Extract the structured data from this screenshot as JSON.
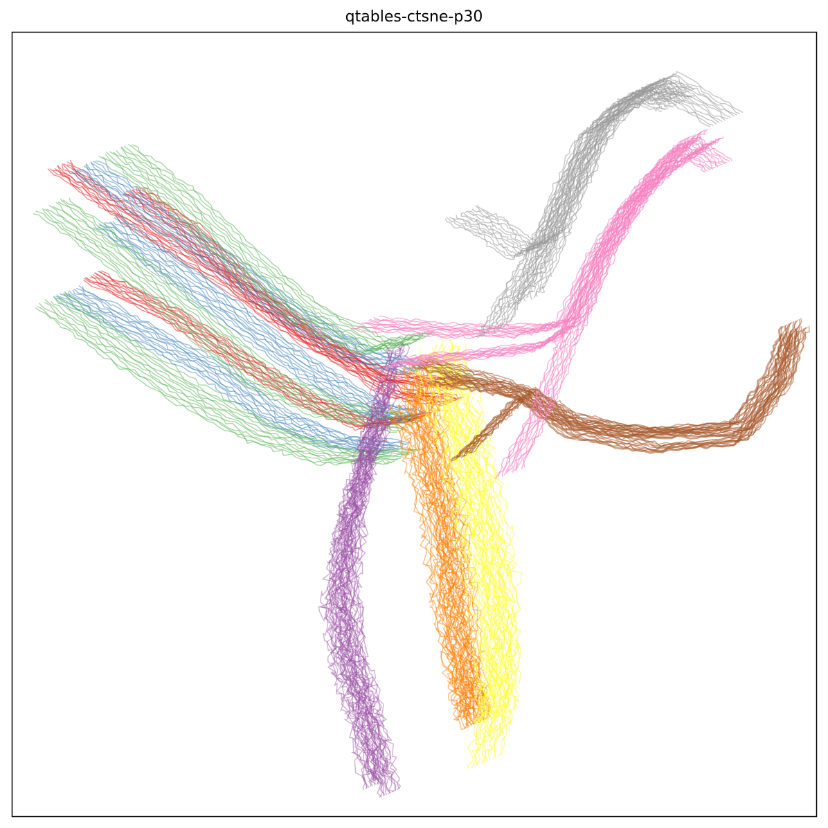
{
  "chart_data": {
    "type": "line",
    "title": "qtables-ctsne-p30",
    "xlabel": "",
    "ylabel": "",
    "axes_ticks": "none",
    "grid": false,
    "legend": "none",
    "note_units": "embedding coordinates; x and y in normalized embedding units 0-1 (0 = left/bottom, 1 = right/top)",
    "clusters": [
      {
        "color": "#e41a1c",
        "line_count": 16,
        "alpha": 0.5,
        "trajectories": [
          {
            "x": [
              0.06,
              0.14,
              0.26,
              0.37,
              0.47,
              0.56
            ],
            "y": [
              0.83,
              0.77,
              0.69,
              0.61,
              0.56,
              0.55
            ]
          },
          {
            "x": [
              0.15,
              0.22,
              0.3,
              0.39,
              0.48,
              0.55
            ],
            "y": [
              0.8,
              0.75,
              0.67,
              0.6,
              0.54,
              0.53
            ]
          },
          {
            "x": [
              0.1,
              0.2,
              0.29,
              0.37,
              0.44,
              0.51
            ],
            "y": [
              0.69,
              0.64,
              0.58,
              0.53,
              0.5,
              0.51
            ]
          }
        ]
      },
      {
        "color": "#377eb8",
        "line_count": 14,
        "alpha": 0.5,
        "trajectories": [
          {
            "x": [
              0.09,
              0.16,
              0.26,
              0.35,
              0.43,
              0.51
            ],
            "y": [
              0.83,
              0.78,
              0.71,
              0.64,
              0.59,
              0.57
            ]
          },
          {
            "x": [
              0.07,
              0.16,
              0.25,
              0.33,
              0.4,
              0.48
            ],
            "y": [
              0.67,
              0.62,
              0.57,
              0.51,
              0.48,
              0.47
            ]
          },
          {
            "x": [
              0.12,
              0.2,
              0.29,
              0.37,
              0.45,
              0.5
            ],
            "y": [
              0.76,
              0.7,
              0.63,
              0.57,
              0.52,
              0.51
            ]
          }
        ]
      },
      {
        "color": "#4daf4a",
        "line_count": 16,
        "alpha": 0.5,
        "trajectories": [
          {
            "x": [
              0.13,
              0.21,
              0.29,
              0.37,
              0.45,
              0.51
            ],
            "y": [
              0.85,
              0.79,
              0.71,
              0.64,
              0.6,
              0.61
            ]
          },
          {
            "x": [
              0.05,
              0.13,
              0.22,
              0.31,
              0.4,
              0.5
            ],
            "y": [
              0.78,
              0.72,
              0.64,
              0.56,
              0.52,
              0.5
            ]
          },
          {
            "x": [
              0.05,
              0.13,
              0.22,
              0.31,
              0.4,
              0.49
            ],
            "y": [
              0.66,
              0.6,
              0.54,
              0.49,
              0.46,
              0.46
            ]
          }
        ]
      },
      {
        "color": "#984ea3",
        "line_count": 22,
        "alpha": 0.45,
        "trajectories": [
          {
            "x": [
              0.48,
              0.45,
              0.43,
              0.42,
              0.43,
              0.45,
              0.47
            ],
            "y": [
              0.6,
              0.5,
              0.4,
              0.3,
              0.2,
              0.12,
              0.03
            ]
          },
          {
            "x": [
              0.47,
              0.44,
              0.42,
              0.41,
              0.42,
              0.44,
              0.46
            ],
            "y": [
              0.55,
              0.46,
              0.38,
              0.29,
              0.21,
              0.14,
              0.05
            ]
          },
          {
            "x": [
              0.46,
              0.43,
              0.41,
              0.4,
              0.41,
              0.43,
              0.45
            ],
            "y": [
              0.5,
              0.42,
              0.35,
              0.27,
              0.2,
              0.13,
              0.04
            ]
          }
        ]
      },
      {
        "color": "#ff7f00",
        "line_count": 22,
        "alpha": 0.5,
        "trajectories": [
          {
            "x": [
              0.5,
              0.52,
              0.54,
              0.55,
              0.56,
              0.57
            ],
            "y": [
              0.58,
              0.48,
              0.38,
              0.29,
              0.2,
              0.13
            ]
          },
          {
            "x": [
              0.49,
              0.51,
              0.53,
              0.54,
              0.56,
              0.58
            ],
            "y": [
              0.53,
              0.45,
              0.36,
              0.27,
              0.18,
              0.12
            ]
          },
          {
            "x": [
              0.51,
              0.53,
              0.55,
              0.56,
              0.57,
              0.58
            ],
            "y": [
              0.56,
              0.46,
              0.37,
              0.28,
              0.19,
              0.12
            ]
          }
        ]
      },
      {
        "color": "#ffff33",
        "line_count": 22,
        "alpha": 0.55,
        "trajectories": [
          {
            "x": [
              0.53,
              0.56,
              0.58,
              0.6,
              0.61,
              0.61
            ],
            "y": [
              0.6,
              0.5,
              0.41,
              0.31,
              0.21,
              0.13
            ]
          },
          {
            "x": [
              0.52,
              0.55,
              0.57,
              0.59,
              0.6,
              0.6
            ],
            "y": [
              0.58,
              0.48,
              0.39,
              0.3,
              0.2,
              0.1
            ]
          },
          {
            "x": [
              0.54,
              0.57,
              0.59,
              0.61,
              0.61,
              0.59
            ],
            "y": [
              0.59,
              0.49,
              0.4,
              0.3,
              0.19,
              0.07
            ]
          }
        ]
      },
      {
        "color": "#a65628",
        "line_count": 12,
        "alpha": 0.55,
        "trajectories": [
          {
            "x": [
              0.51,
              0.58,
              0.64,
              0.7,
              0.8,
              0.91,
              0.96,
              0.97
            ],
            "y": [
              0.58,
              0.56,
              0.54,
              0.5,
              0.49,
              0.49,
              0.56,
              0.62
            ]
          },
          {
            "x": [
              0.53,
              0.59,
              0.64,
              0.7,
              0.8,
              0.91,
              0.96,
              0.98
            ],
            "y": [
              0.56,
              0.55,
              0.54,
              0.49,
              0.47,
              0.48,
              0.55,
              0.62
            ]
          },
          {
            "x": [
              0.56,
              0.6,
              0.64,
              0.69,
              0.78,
              0.9,
              0.95,
              0.97
            ],
            "y": [
              0.46,
              0.5,
              0.54,
              0.51,
              0.49,
              0.5,
              0.57,
              0.63
            ]
          }
        ]
      },
      {
        "color": "#f781bf",
        "line_count": 20,
        "alpha": 0.6,
        "trajectories": [
          {
            "x": [
              0.62,
              0.66,
              0.69,
              0.71,
              0.74,
              0.77,
              0.8,
              0.84,
              0.87
            ],
            "y": [
              0.44,
              0.52,
              0.6,
              0.65,
              0.72,
              0.78,
              0.81,
              0.84,
              0.86
            ]
          },
          {
            "x": [
              0.44,
              0.55,
              0.64,
              0.69,
              0.73,
              0.77,
              0.81,
              0.85
            ],
            "y": [
              0.63,
              0.62,
              0.62,
              0.63,
              0.72,
              0.78,
              0.83,
              0.87
            ]
          },
          {
            "x": [
              0.48,
              0.58,
              0.66,
              0.7,
              0.73,
              0.77,
              0.8,
              0.84,
              0.88
            ],
            "y": [
              0.58,
              0.59,
              0.6,
              0.63,
              0.71,
              0.77,
              0.82,
              0.86,
              0.83
            ]
          }
        ]
      },
      {
        "color": "#999999",
        "line_count": 14,
        "alpha": 0.55,
        "trajectories": [
          {
            "x": [
              0.56,
              0.6,
              0.64,
              0.67,
              0.69,
              0.72,
              0.76,
              0.8,
              0.83
            ],
            "y": [
              0.77,
              0.75,
              0.72,
              0.74,
              0.8,
              0.87,
              0.91,
              0.93,
              0.92
            ]
          },
          {
            "x": [
              0.6,
              0.62,
              0.65,
              0.67,
              0.7,
              0.73,
              0.77,
              0.81,
              0.89
            ],
            "y": [
              0.62,
              0.66,
              0.71,
              0.75,
              0.81,
              0.88,
              0.92,
              0.94,
              0.89
            ]
          },
          {
            "x": [
              0.64,
              0.66,
              0.68,
              0.7,
              0.72,
              0.75,
              0.79,
              0.83
            ],
            "y": [
              0.66,
              0.7,
              0.75,
              0.8,
              0.85,
              0.89,
              0.92,
              0.91
            ]
          }
        ]
      }
    ]
  }
}
